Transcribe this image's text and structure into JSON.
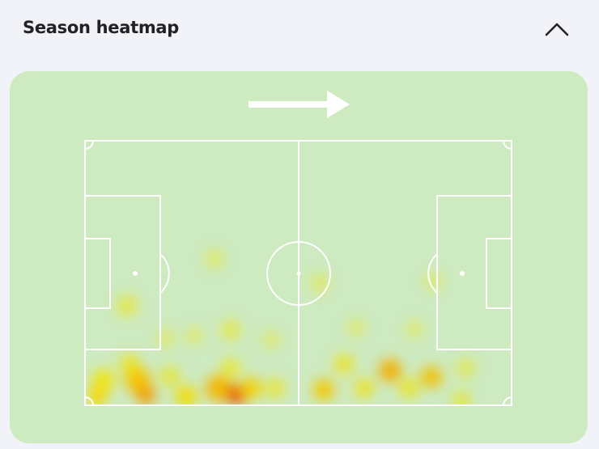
{
  "header": {
    "title": "Season heatmap"
  }
}
